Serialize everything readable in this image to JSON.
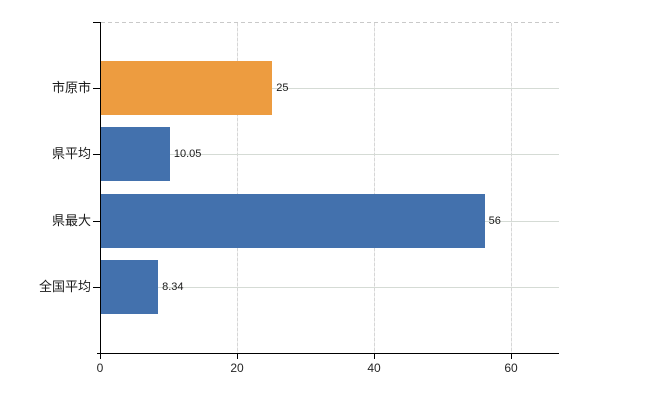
{
  "chart_data": {
    "type": "bar",
    "orientation": "horizontal",
    "title": "",
    "xlabel": "",
    "ylabel": "",
    "categories": [
      "市原市",
      "県平均",
      "県最大",
      "全国平均"
    ],
    "values": [
      25,
      10.05,
      56,
      8.34
    ],
    "value_labels": [
      "25",
      "10.05",
      "56",
      "8.34"
    ],
    "bar_colors": [
      "#ED9C40",
      "#4371AD",
      "#4371AD",
      "#4371AD"
    ],
    "xlim": [
      0,
      67
    ],
    "x_ticks": [
      "0",
      "20",
      "40",
      "60"
    ],
    "x_tick_values": [
      0,
      20,
      40,
      60
    ],
    "grid": "on",
    "legend": "none"
  },
  "colors": {
    "background": "#FFFFFF",
    "bar_highlight_orange": "#ED9C40",
    "bar_default_blue": "#4371AD",
    "axis_line": "#000000",
    "gridline_vertical": "#D6D6D6",
    "gridline_horizontal": "#D5DBD5",
    "plot_top_border": "#C9C9C9",
    "text": "#1A1A1A"
  }
}
